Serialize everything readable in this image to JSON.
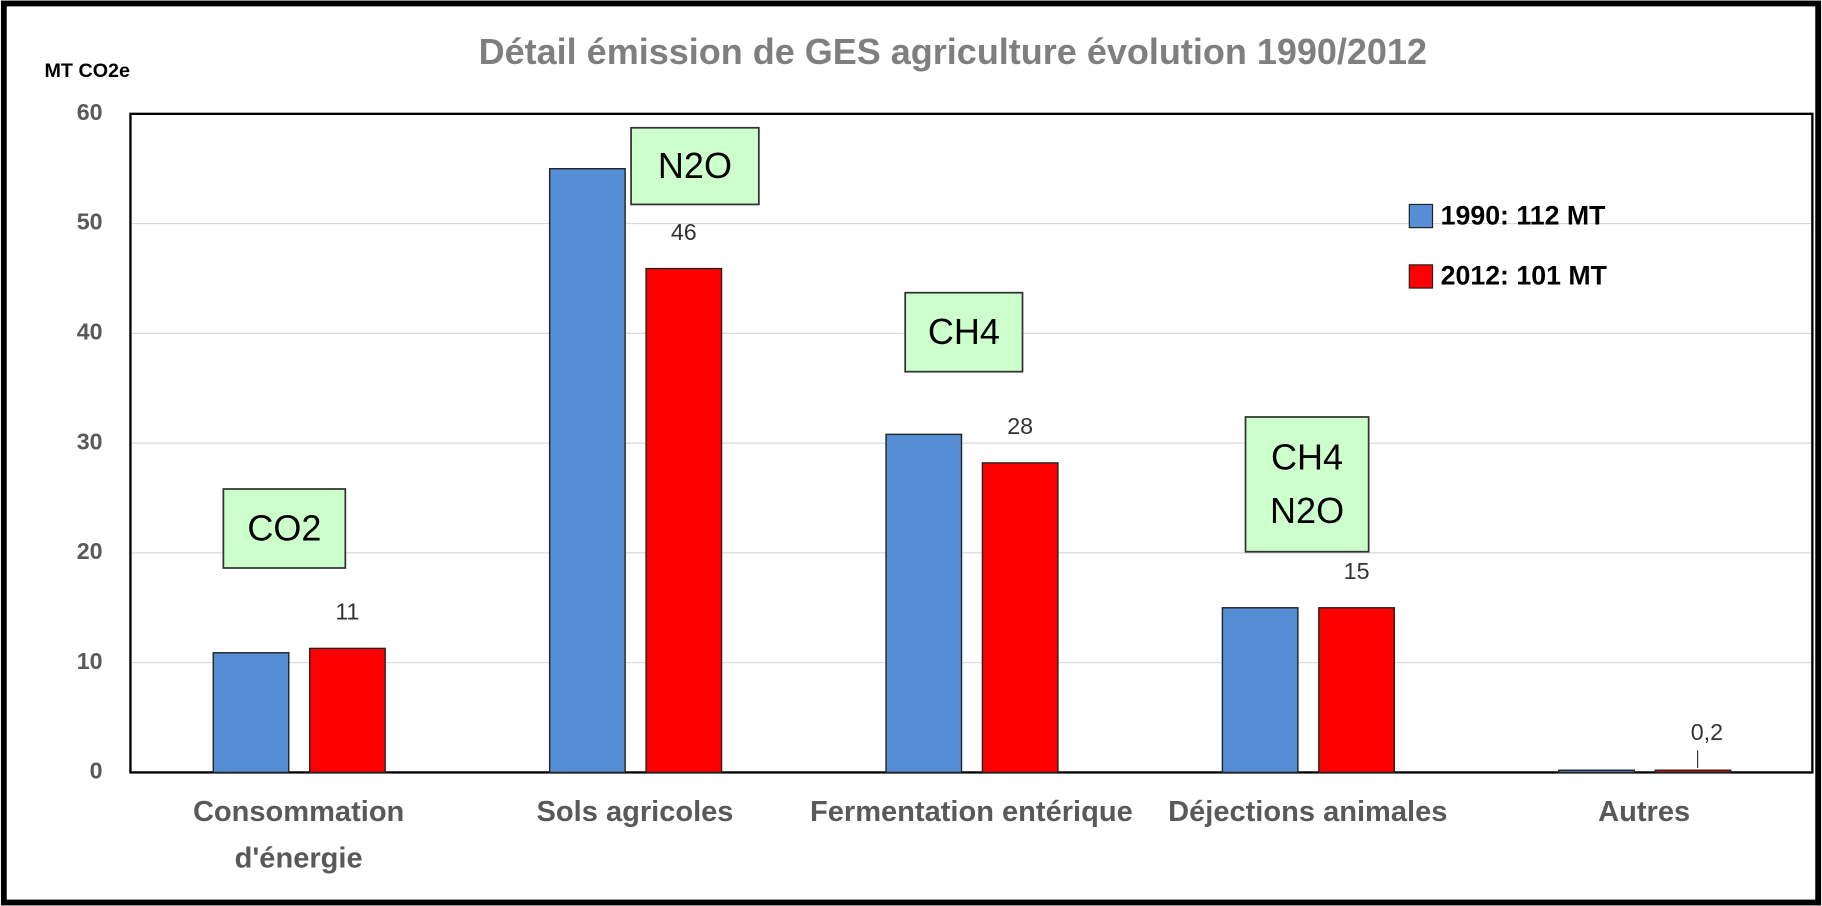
{
  "chart_data": {
    "type": "bar",
    "title": "Détail émission de GES agriculture évolution 1990/2012",
    "y_axis_label": "MT CO2e",
    "categories": [
      "Consommation d'énergie",
      "Sols agricoles",
      "Fermentation entérique",
      "Déjections animales",
      "Autres"
    ],
    "series": [
      {
        "name": "1990: 112 MT",
        "color": "#558ed5",
        "values": [
          10.9,
          55,
          30.8,
          15,
          0.2
        ]
      },
      {
        "name": "2012: 101 MT",
        "color": "#ff0000",
        "values": [
          11.3,
          45.9,
          28.2,
          15,
          0.2
        ],
        "value_labels": [
          "11",
          "46",
          "28",
          "15",
          "0,2"
        ]
      }
    ],
    "ylim": [
      0,
      60
    ],
    "yticks": [
      0,
      10,
      20,
      30,
      40,
      50,
      60
    ],
    "grid": true,
    "legend": "upper right",
    "annotations": [
      {
        "lines": [
          "CO2"
        ]
      },
      {
        "lines": [
          "N2O"
        ]
      },
      {
        "lines": [
          "CH4"
        ]
      },
      {
        "lines": [
          "CH4",
          "N2O"
        ]
      }
    ]
  }
}
